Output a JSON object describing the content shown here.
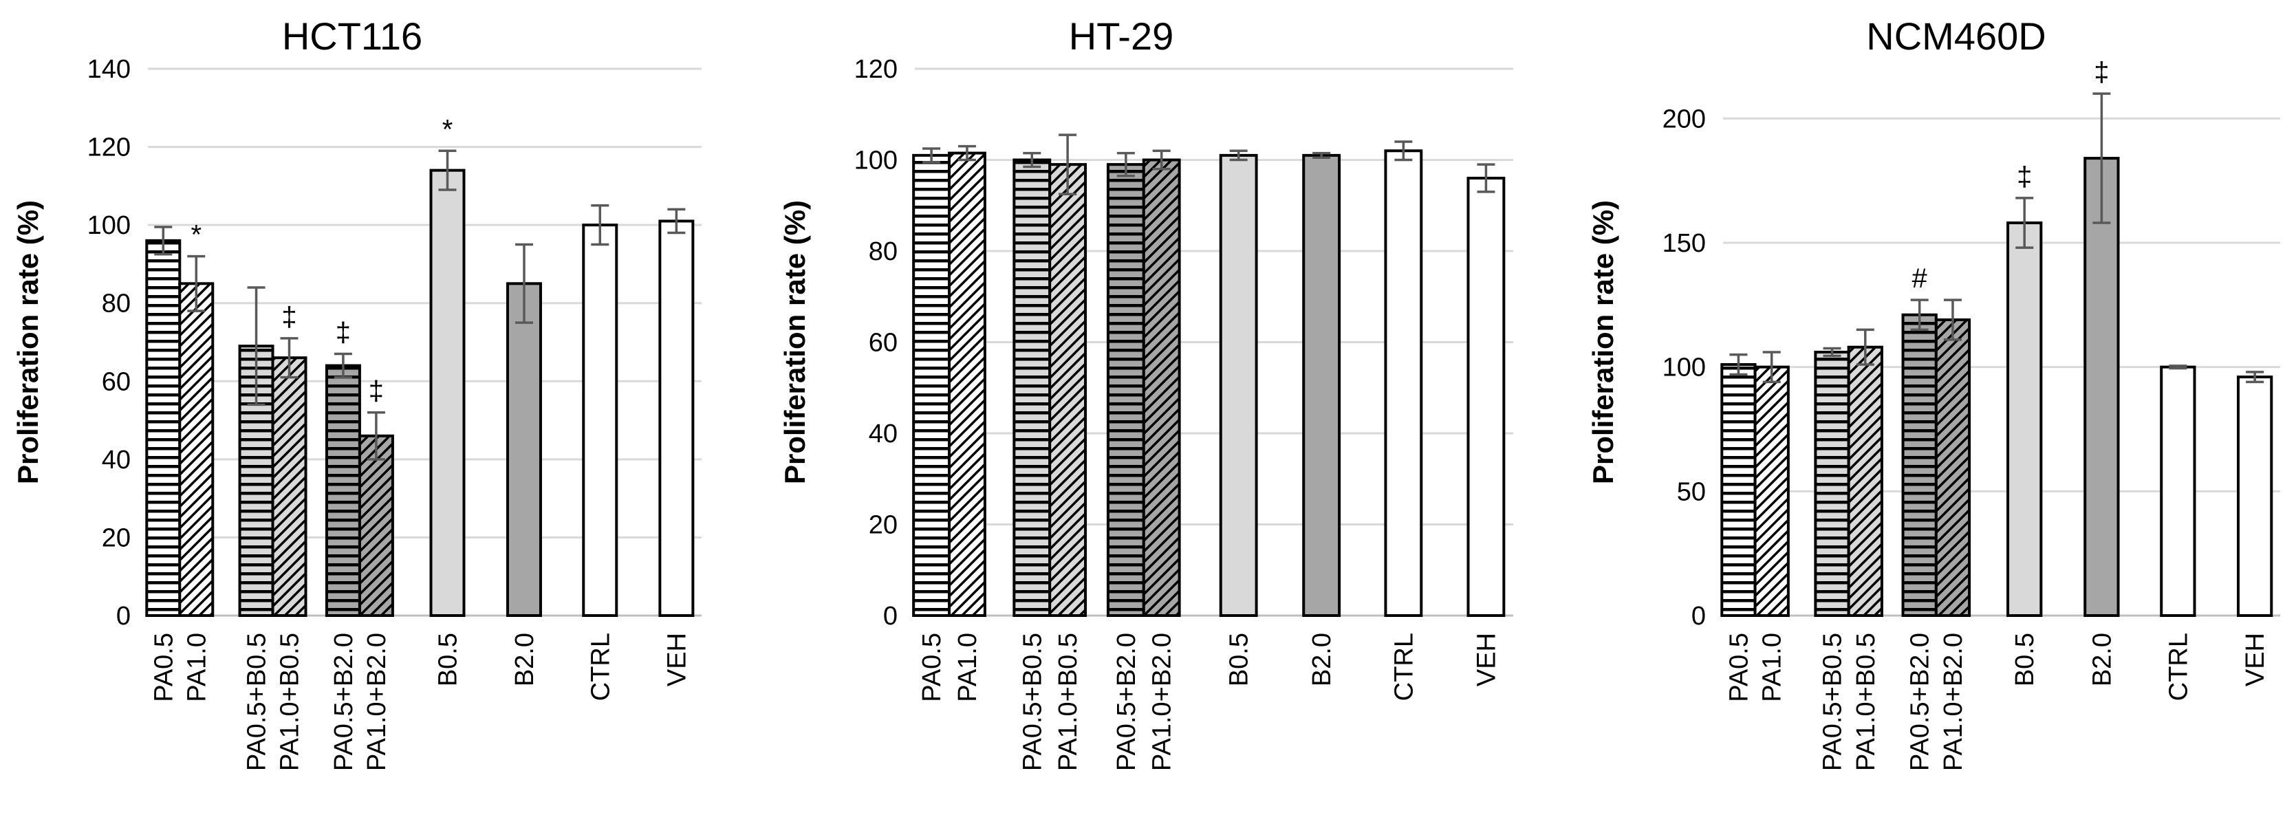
{
  "chart_data": [
    {
      "type": "bar",
      "title": "HCT116",
      "ylabel": "Proliferation rate (%)",
      "ylim": [
        0,
        140
      ],
      "yticks": [
        0,
        20,
        40,
        60,
        80,
        100,
        120,
        140
      ],
      "grid": true,
      "categories": [
        "PA0.5",
        "PA1.0",
        "PA0.5+B0.5",
        "PA1.0+B0.5",
        "PA0.5+B2.0",
        "PA1.0+B2.0",
        "B0.5",
        "B2.0",
        "CTRL",
        "VEH"
      ],
      "values": [
        96,
        85,
        69,
        66,
        64,
        46,
        114,
        85,
        100,
        101
      ],
      "errors": [
        3.5,
        7,
        15,
        5,
        3,
        6,
        5,
        10,
        5,
        3
      ],
      "markers": [
        "",
        "*",
        "",
        "‡",
        "‡",
        "‡",
        "*",
        "",
        "",
        ""
      ]
    },
    {
      "type": "bar",
      "title": "HT-29",
      "ylabel": "Proliferation rate (%)",
      "ylim": [
        0,
        120
      ],
      "yticks": [
        0,
        20,
        40,
        60,
        80,
        100,
        120
      ],
      "grid": true,
      "categories": [
        "PA0.5",
        "PA1.0",
        "PA0.5+B0.5",
        "PA1.0+B0.5",
        "PA0.5+B2.0",
        "PA1.0+B2.0",
        "B0.5",
        "B2.0",
        "CTRL",
        "VEH"
      ],
      "values": [
        101,
        101.5,
        100,
        99,
        99,
        100,
        101,
        101,
        102,
        96
      ],
      "errors": [
        1.5,
        1.5,
        1.5,
        6.5,
        2.5,
        2,
        1,
        0.5,
        2,
        3
      ],
      "markers": [
        "",
        "",
        "",
        "",
        "",
        "",
        "",
        "",
        "",
        ""
      ]
    },
    {
      "type": "bar",
      "title": "NCM460D",
      "ylabel": "Proliferation rate (%)",
      "ylim": [
        0,
        220
      ],
      "yticks": [
        0,
        50,
        100,
        150,
        200
      ],
      "grid": true,
      "categories": [
        "PA0.5",
        "PA1.0",
        "PA0.5+B0.5",
        "PA1.0+B0.5",
        "PA0.5+B2.0",
        "PA1.0+B2.0",
        "B0.5",
        "B2.0",
        "CTRL",
        "VEH"
      ],
      "values": [
        101,
        100,
        106,
        108,
        121,
        119,
        158,
        184,
        100,
        96
      ],
      "errors": [
        4,
        6,
        1.5,
        7,
        6,
        8,
        10,
        26,
        0.5,
        2
      ],
      "markers": [
        "",
        "",
        "",
        "",
        "#",
        "",
        "‡",
        "‡",
        "",
        ""
      ]
    }
  ],
  "bar_styles": [
    "hstripe-white",
    "diag-white",
    "hstripe-light",
    "diag-light",
    "hstripe-dark",
    "diag-dark",
    "solid-light",
    "solid-dark",
    "solid-white",
    "solid-white"
  ],
  "colors": {
    "light_gray": "#d9d9d9",
    "dark_gray": "#a6a6a6",
    "white": "#ffffff",
    "grid": "#d9d9d9",
    "axis": "#bfbfbf"
  }
}
